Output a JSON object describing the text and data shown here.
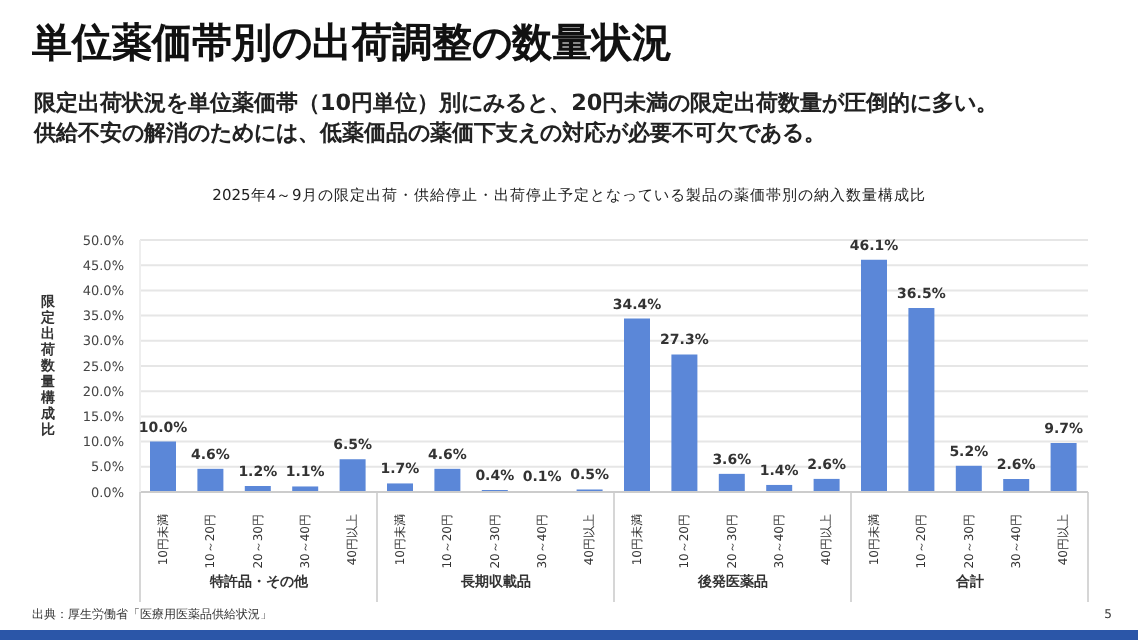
{
  "chart_data": {
    "type": "bar",
    "title": "単位薬価帯別の出荷調整の数量状況",
    "subtitle": "限定出荷状況を単位薬価帯（10円単位）別にみると、20円未満の限定出荷数量が圧倒的に多い。供給不安の解消のためには、低薬価品の薬価下支えの対応が必要不可欠である。",
    "legend_title": null,
    "ylabel": "限定出荷数量構成比",
    "categories": [
      "10円未満",
      "10～20円",
      "20～30円",
      "30～40円",
      "40円以上",
      "10円未満",
      "10～20円",
      "20～30円",
      "30～40円",
      "40円以上",
      "10円未満",
      "10～20円",
      "20～30円",
      "30～40円",
      "40円以上",
      "10円未満",
      "10～20円",
      "20～30円",
      "30～40円",
      "40円以上"
    ],
    "series": [
      {
        "color": "#5b87d8",
        "values": [
          10.0,
          4.6,
          1.2,
          1.1,
          6.5,
          1.7,
          4.6,
          0.4,
          0.1,
          0.5,
          34.4,
          27.3,
          3.6,
          1.4,
          2.6,
          46.1,
          36.5,
          5.2,
          2.6,
          9.7
        ],
        "value_labels": [
          "10.0%",
          "4.6%",
          "1.2%",
          "1.1%",
          "6.5%",
          "1.7%",
          "4.6%",
          "0.4%",
          "0.1%",
          "0.5%",
          "34.4%",
          "27.3%",
          "3.6%",
          "1.4%",
          "2.6%",
          "46.1%",
          "36.5%",
          "5.2%",
          "2.6%",
          "9.7%"
        ]
      }
    ],
    "ylim": [
      0,
      50
    ],
    "yticks": [
      {
        "value": 0,
        "label": "0.0%"
      },
      {
        "value": 5,
        "label": "5.0%"
      },
      {
        "value": 10,
        "label": "10.0%"
      },
      {
        "value": 15,
        "label": "15.0%"
      },
      {
        "value": 20,
        "label": "20.0%"
      },
      {
        "value": 25,
        "label": "25.0%"
      },
      {
        "value": 30,
        "label": "30.0%"
      },
      {
        "value": 35,
        "label": "35.0%"
      },
      {
        "value": 40,
        "label": "40.0%"
      },
      {
        "value": 45,
        "label": "45.0%"
      },
      {
        "value": 50,
        "label": "50.0%"
      }
    ],
    "grid": "y",
    "legend": false,
    "annotations": [
      "2025年4～9月の限定出荷・供給停止・出荷停止予定となっている製品の薬価帯別の納入数量構成比",
      "特許品・その他",
      "長期収載品",
      "後発医薬品",
      "合計",
      "出典：厚生労働省「医療用医薬品供給状況」",
      "5"
    ]
  }
}
